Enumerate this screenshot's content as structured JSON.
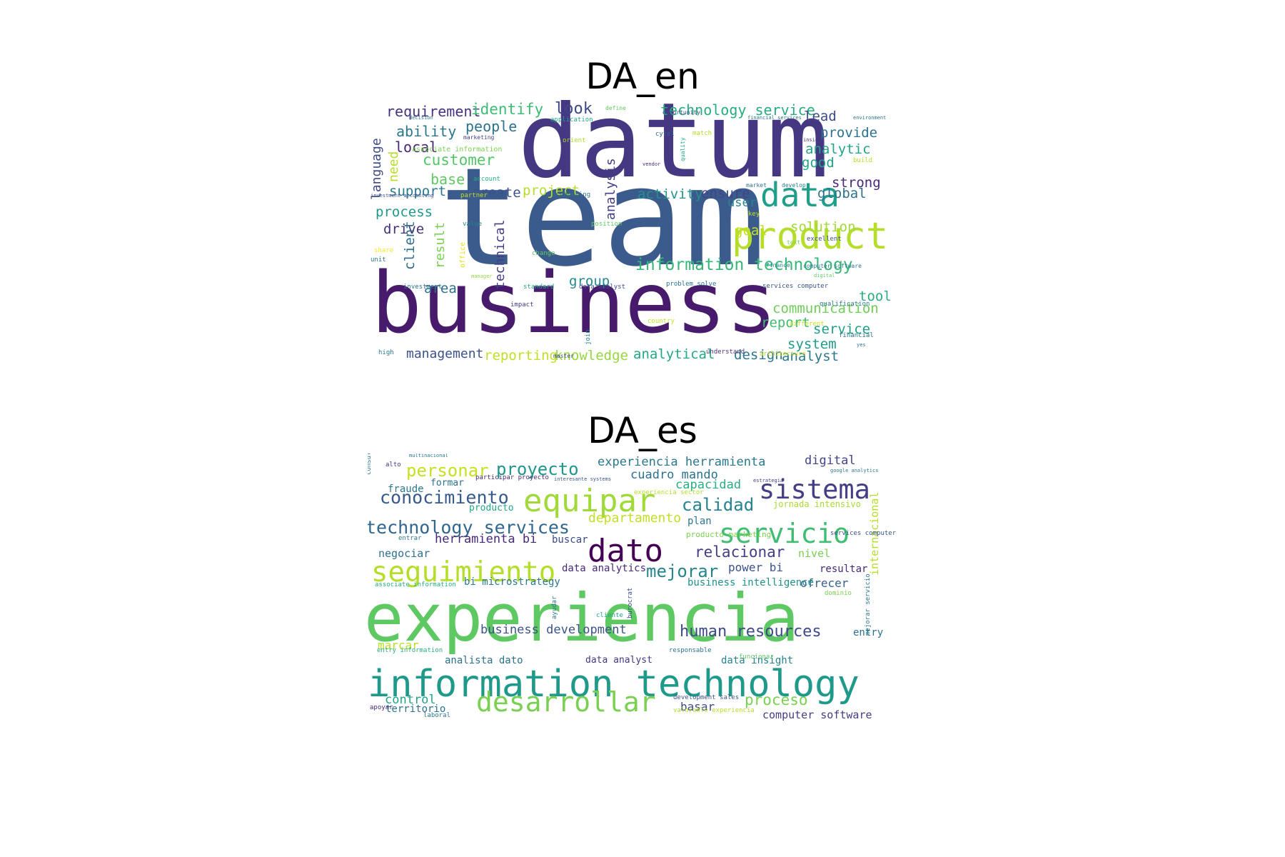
{
  "panels": [
    {
      "title": "DA_en",
      "words": [
        {
          "t": "team",
          "c": "#3b5b8d"
        },
        {
          "t": "datum",
          "c": "#453781"
        },
        {
          "t": "business",
          "c": "#481a6c"
        },
        {
          "t": "product",
          "c": "#b5de2b"
        },
        {
          "t": "data",
          "c": "#1f9e89"
        },
        {
          "t": "information technology",
          "c": "#35b779"
        },
        {
          "t": "requirement",
          "c": "#46327e"
        },
        {
          "t": "identify",
          "c": "#3dbc74"
        },
        {
          "t": "look",
          "c": "#3e4989"
        },
        {
          "t": "technology service",
          "c": "#26ad81"
        },
        {
          "t": "lead",
          "c": "#3e4989"
        },
        {
          "t": "ability",
          "c": "#2a788e"
        },
        {
          "t": "people",
          "c": "#2c728e"
        },
        {
          "t": "provide",
          "c": "#2c728e"
        },
        {
          "t": "local",
          "c": "#482677"
        },
        {
          "t": "analytic",
          "c": "#21a585"
        },
        {
          "t": "customer",
          "c": "#52c569"
        },
        {
          "t": "good",
          "c": "#20a486"
        },
        {
          "t": "base",
          "c": "#5ec962"
        },
        {
          "t": "strong",
          "c": "#482878"
        },
        {
          "t": "support",
          "c": "#2a788e"
        },
        {
          "t": "create",
          "c": "#3b528b"
        },
        {
          "t": "project",
          "c": "#b5de2b"
        },
        {
          "t": "activity",
          "c": "#21918c"
        },
        {
          "t": "ensure",
          "c": "#414487"
        },
        {
          "t": "global",
          "c": "#2c728e"
        },
        {
          "t": "user",
          "c": "#25848e"
        },
        {
          "t": "process",
          "c": "#1f9a8a"
        },
        {
          "t": "drive",
          "c": "#472f7d"
        },
        {
          "t": "goal",
          "c": "#c8e020"
        },
        {
          "t": "solution",
          "c": "#a2da37"
        },
        {
          "t": "area",
          "c": "#2e6e8e"
        },
        {
          "t": "group",
          "c": "#23898e"
        },
        {
          "t": "tool",
          "c": "#29af7f"
        },
        {
          "t": "communication",
          "c": "#6ece58"
        },
        {
          "t": "report",
          "c": "#40bd72"
        },
        {
          "t": "service",
          "c": "#1fa088"
        },
        {
          "t": "system",
          "c": "#1e9b8a"
        },
        {
          "t": "analyst",
          "c": "#2a788e"
        },
        {
          "t": "management",
          "c": "#3b528b"
        },
        {
          "t": "reporting",
          "c": "#c2df23"
        },
        {
          "t": "knowledge",
          "c": "#95d840"
        },
        {
          "t": "analytical",
          "c": "#22a884"
        },
        {
          "t": "design",
          "c": "#2a768e"
        },
        {
          "t": "language",
          "c": "#3e4a89"
        },
        {
          "t": "need",
          "c": "#b8de29"
        },
        {
          "t": "analysis",
          "c": "#433e85"
        },
        {
          "t": "client",
          "c": "#2e6e8e"
        },
        {
          "t": "result",
          "c": "#7ad151"
        },
        {
          "t": "technical",
          "c": "#433e85"
        },
        {
          "t": "office",
          "c": "#dde318"
        },
        {
          "t": "join",
          "c": "#25848e"
        },
        {
          "t": "opportunity",
          "c": "#3e4989"
        },
        {
          "t": "application",
          "c": "#21a685"
        },
        {
          "t": "define",
          "c": "#5ec962"
        },
        {
          "t": "decision",
          "c": "#2a788e"
        },
        {
          "t": "marketing",
          "c": "#433e85"
        },
        {
          "t": "associate information",
          "c": "#7ad151"
        },
        {
          "t": "orient",
          "c": "#addc30"
        },
        {
          "t": "account",
          "c": "#26ad81"
        },
        {
          "t": "investment accounting",
          "c": "#3b528b"
        },
        {
          "t": "partner",
          "c": "#c2df23"
        },
        {
          "t": "accounting",
          "c": "#2c728e"
        },
        {
          "t": "match",
          "c": "#b5de2b"
        },
        {
          "t": "cytel",
          "c": "#355f8d"
        },
        {
          "t": "financial services",
          "c": "#2a788e"
        },
        {
          "t": "insight",
          "c": "#46327e"
        },
        {
          "t": "environment",
          "c": "#2a788e"
        },
        {
          "t": "build",
          "c": "#b5de2b"
        },
        {
          "t": "quality",
          "c": "#22a884"
        },
        {
          "t": "vendor",
          "c": "#482878"
        },
        {
          "t": "market",
          "c": "#2c728e"
        },
        {
          "t": "develop",
          "c": "#2a788e"
        },
        {
          "t": "key",
          "c": "#c8e020"
        },
        {
          "t": "position",
          "c": "#5ec962"
        },
        {
          "t": "value",
          "c": "#26828e"
        },
        {
          "t": "share",
          "c": "#fde725"
        },
        {
          "t": "unit",
          "c": "#2a788e"
        },
        {
          "t": "change",
          "c": "#5ec962"
        },
        {
          "t": "text",
          "c": "#7ad151"
        },
        {
          "t": "excellent",
          "c": "#3b528b"
        },
        {
          "t": "finance",
          "c": "#26828e"
        },
        {
          "t": "computer software",
          "c": "#2a788e"
        },
        {
          "t": "manager",
          "c": "#8fd744"
        },
        {
          "t": "investment",
          "c": "#2c728e"
        },
        {
          "t": "standard",
          "c": "#20a486"
        },
        {
          "t": "data analyst",
          "c": "#3e4989"
        },
        {
          "t": "problem solve",
          "c": "#2c728e"
        },
        {
          "t": "services computer",
          "c": "#3b528b"
        },
        {
          "t": "digital",
          "c": "#5ec962"
        },
        {
          "t": "qualification",
          "c": "#2a788e"
        },
        {
          "t": "impact",
          "c": "#443983"
        },
        {
          "t": "country",
          "c": "#c2df23"
        },
        {
          "t": "different",
          "c": "#c8e020"
        },
        {
          "t": "financial",
          "c": "#2c728e"
        },
        {
          "t": "high",
          "c": "#2a788e"
        },
        {
          "t": "master",
          "c": "#414487"
        },
        {
          "t": "understand",
          "c": "#46327e"
        },
        {
          "t": "architecture",
          "c": "#c8e020"
        },
        {
          "t": "yes",
          "c": "#2a788e"
        }
      ]
    },
    {
      "title": "DA_es",
      "words": [
        {
          "t": "experiencia",
          "c": "#5ec962"
        },
        {
          "t": "information technology",
          "c": "#1f9a8a"
        },
        {
          "t": "dato",
          "c": "#440154"
        },
        {
          "t": "servicio",
          "c": "#40bd72"
        },
        {
          "t": "equipar",
          "c": "#a0da39"
        },
        {
          "t": "sistema",
          "c": "#433e85"
        },
        {
          "t": "seguimiento",
          "c": "#b5de2b"
        },
        {
          "t": "desarrollar",
          "c": "#7ad151"
        },
        {
          "t": "conocimiento",
          "c": "#38598c"
        },
        {
          "t": "technology services",
          "c": "#31668e"
        },
        {
          "t": "personar",
          "c": "#c8e020"
        },
        {
          "t": "proyecto",
          "c": "#1f968b"
        },
        {
          "t": "experiencia herramienta",
          "c": "#2a788e"
        },
        {
          "t": "digital",
          "c": "#414487"
        },
        {
          "t": "cuadro mando",
          "c": "#2c728e"
        },
        {
          "t": "capacidad",
          "c": "#29af7f"
        },
        {
          "t": "calidad",
          "c": "#25848e"
        },
        {
          "t": "departamento",
          "c": "#c2df23"
        },
        {
          "t": "plan",
          "c": "#2a788e"
        },
        {
          "t": "herramienta bi",
          "c": "#482878"
        },
        {
          "t": "buscar",
          "c": "#3e4989"
        },
        {
          "t": "relacionar",
          "c": "#433e85"
        },
        {
          "t": "mejorar",
          "c": "#25848e"
        },
        {
          "t": "power bi",
          "c": "#3b528b"
        },
        {
          "t": "ofrecer",
          "c": "#355f8d"
        },
        {
          "t": "negociar",
          "c": "#2c728e"
        },
        {
          "t": "nivel",
          "c": "#7ad151"
        },
        {
          "t": "resultar",
          "c": "#482878"
        },
        {
          "t": "data analytics",
          "c": "#482878"
        },
        {
          "t": "bi microstrategy",
          "c": "#2a788e"
        },
        {
          "t": "business intelligence",
          "c": "#21918c"
        },
        {
          "t": "human resources",
          "c": "#3e4989"
        },
        {
          "t": "business development",
          "c": "#3b528b"
        },
        {
          "t": "marcar",
          "c": "#b8de29"
        },
        {
          "t": "analista dato",
          "c": "#2c728e"
        },
        {
          "t": "data analyst",
          "c": "#443983"
        },
        {
          "t": "data insight",
          "c": "#26828e"
        },
        {
          "t": "entry",
          "c": "#2c728e"
        },
        {
          "t": "proceso",
          "c": "#7ad151"
        },
        {
          "t": "control",
          "c": "#20a486"
        },
        {
          "t": "territorio",
          "c": "#2c728e"
        },
        {
          "t": "basar",
          "c": "#3e4989"
        },
        {
          "t": "computer software",
          "c": "#433e85"
        },
        {
          "t": "fraude",
          "c": "#2a788e"
        },
        {
          "t": "formar",
          "c": "#2c728e"
        },
        {
          "t": "producto",
          "c": "#22a884"
        },
        {
          "t": "internacional",
          "c": "#b5de2b"
        },
        {
          "t": "consultor data",
          "c": "#2a788e"
        },
        {
          "t": "alto",
          "c": "#443983"
        },
        {
          "t": "participar proyecto",
          "c": "#482878"
        },
        {
          "t": "jornada intensivo",
          "c": "#a8db34"
        },
        {
          "t": "producto marketing",
          "c": "#7ad151"
        },
        {
          "t": "services computer",
          "c": "#3b528b"
        },
        {
          "t": "entrar",
          "c": "#2a788e"
        },
        {
          "t": "associate information",
          "c": "#26ad81"
        },
        {
          "t": "cliente",
          "c": "#20a486"
        },
        {
          "t": "ayudar",
          "c": "#2c728e"
        },
        {
          "t": "entry information",
          "c": "#26ad81"
        },
        {
          "t": "responsable",
          "c": "#2c728e"
        },
        {
          "t": "funcionar",
          "c": "#5ec962"
        },
        {
          "t": "mejorar servicio",
          "c": "#2a788e"
        },
        {
          "t": "apoyar",
          "c": "#482878"
        },
        {
          "t": "laboral",
          "c": "#2c728e"
        },
        {
          "t": "multinacional",
          "c": "#2a788e"
        },
        {
          "t": "development sales",
          "c": "#3b528b"
        },
        {
          "t": "valorable experiencia",
          "c": "#b5de2b"
        },
        {
          "t": "dominio",
          "c": "#7ad151"
        },
        {
          "t": "burocrat",
          "c": "#3e4989"
        },
        {
          "t": "estrategia",
          "c": "#433e85"
        },
        {
          "t": "google analytics",
          "c": "#2a788e"
        },
        {
          "t": "experiencia sector",
          "c": "#b5de2b"
        },
        {
          "t": "interesante systems",
          "c": "#3b528b"
        }
      ]
    }
  ]
}
